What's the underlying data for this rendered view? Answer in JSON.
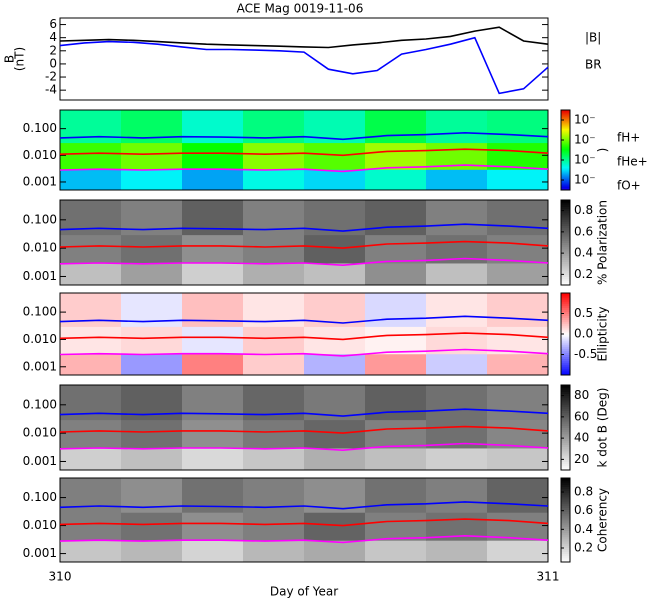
{
  "chart_data": [
    {
      "type": "line",
      "title": "ACE Mag 0019-11-06",
      "ylabel": [
        "B",
        "(nT)"
      ],
      "xlim": [
        310,
        311
      ],
      "ylim": [
        -5.5,
        7
      ],
      "yticks": [
        -4,
        -2,
        0,
        2,
        4,
        6
      ],
      "x": [
        310,
        310.05,
        310.1,
        310.15,
        310.2,
        310.25,
        310.3,
        310.35,
        310.4,
        310.45,
        310.5,
        310.55,
        310.6,
        310.65,
        310.7,
        310.75,
        310.8,
        310.85,
        310.9,
        310.95,
        311
      ],
      "series": [
        {
          "name": "|B|",
          "color": "#000000",
          "values": [
            3.5,
            3.6,
            3.7,
            3.6,
            3.4,
            3.2,
            3.0,
            2.9,
            2.8,
            2.7,
            2.6,
            2.5,
            2.9,
            3.2,
            3.6,
            3.8,
            4.2,
            5.0,
            5.6,
            3.5,
            3.0
          ]
        },
        {
          "name": "BR",
          "color": "#0000ff",
          "values": [
            2.8,
            3.2,
            3.4,
            3.3,
            3.0,
            2.6,
            2.2,
            2.2,
            2.1,
            2.0,
            1.8,
            -0.8,
            -1.5,
            -1.0,
            1.5,
            2.2,
            3.0,
            4.0,
            -4.5,
            -3.8,
            -0.5
          ]
        }
      ]
    },
    {
      "type": "spectrogram",
      "log": true,
      "xlim": [
        310,
        311
      ],
      "ylim": [
        0.0005,
        0.5
      ],
      "yticks": [
        0.001,
        {
          "value": 0.01,
          "label": "0.010"
        },
        {
          "value": 0.1,
          "label": "0.100"
        }
      ],
      "colormap": "rainbow",
      "zlim": [
        -7.5,
        -3.5
      ],
      "zticks": [
        {
          "value": -7,
          "label": "10⁻"
        },
        {
          "value": -6,
          "label": "10⁻"
        },
        {
          "value": -5,
          "label": "10⁻"
        },
        {
          "value": -4,
          "label": "10⁻"
        }
      ],
      "colorbar_label": ")",
      "z_y_edges": [
        0.0005,
        0.003,
        0.03,
        0.5
      ],
      "z": [
        [
          -6.6,
          -6.4,
          -6.7,
          -6.3,
          -6.5,
          -6.2,
          -6.6,
          -6.4
        ],
        [
          -5.2,
          -5.0,
          -5.4,
          -4.9,
          -5.1,
          -4.8,
          -5.0,
          -5.3
        ],
        [
          -6.0,
          -5.8,
          -6.2,
          -5.9,
          -6.1,
          -5.7,
          -6.0,
          -5.9
        ]
      ],
      "legend": true,
      "x": [
        310,
        310.08,
        310.17,
        310.25,
        310.33,
        310.42,
        310.5,
        310.58,
        310.67,
        310.75,
        310.83,
        310.92,
        311
      ],
      "series": [
        {
          "name": "fH+",
          "color": "#0000ff",
          "values": [
            0.045,
            0.05,
            0.045,
            0.05,
            0.048,
            0.045,
            0.05,
            0.04,
            0.055,
            0.06,
            0.07,
            0.06,
            0.05
          ]
        },
        {
          "name": "fHe+",
          "color": "#ff0000",
          "values": [
            0.011,
            0.012,
            0.011,
            0.012,
            0.012,
            0.011,
            0.012,
            0.01,
            0.014,
            0.015,
            0.017,
            0.015,
            0.012
          ]
        },
        {
          "name": "fO+",
          "color": "#ff00ff",
          "values": [
            0.0028,
            0.003,
            0.0028,
            0.003,
            0.003,
            0.0028,
            0.003,
            0.0025,
            0.0034,
            0.0037,
            0.0043,
            0.0037,
            0.003
          ]
        }
      ]
    },
    {
      "type": "spectrogram",
      "log": true,
      "xlim": [
        310,
        311
      ],
      "ylim": [
        0.0005,
        0.5
      ],
      "yticks": [
        0.001,
        {
          "value": 0.01,
          "label": "0.010"
        },
        {
          "value": 0.1,
          "label": "0.100"
        }
      ],
      "colormap": "gray_r",
      "zlim": [
        0.1,
        0.9
      ],
      "zticks": [
        0.2,
        0.4,
        0.6,
        0.8
      ],
      "colorbar_label": "% Polarization",
      "z_y_edges": [
        0.0005,
        0.003,
        0.03,
        0.5
      ],
      "z": [
        [
          0.3,
          0.4,
          0.25,
          0.35,
          0.3,
          0.45,
          0.3,
          0.4
        ],
        [
          0.5,
          0.55,
          0.45,
          0.5,
          0.6,
          0.5,
          0.55,
          0.5
        ],
        [
          0.55,
          0.5,
          0.6,
          0.5,
          0.55,
          0.6,
          0.5,
          0.55
        ]
      ],
      "x": [
        310,
        310.08,
        310.17,
        310.25,
        310.33,
        310.42,
        310.5,
        310.58,
        310.67,
        310.75,
        310.83,
        310.92,
        311
      ],
      "series": [
        {
          "color": "#0000ff",
          "values": [
            0.045,
            0.05,
            0.045,
            0.05,
            0.048,
            0.045,
            0.05,
            0.04,
            0.055,
            0.06,
            0.07,
            0.06,
            0.05
          ]
        },
        {
          "color": "#ff0000",
          "values": [
            0.011,
            0.012,
            0.011,
            0.012,
            0.012,
            0.011,
            0.012,
            0.01,
            0.014,
            0.015,
            0.017,
            0.015,
            0.012
          ]
        },
        {
          "color": "#ff00ff",
          "values": [
            0.0028,
            0.003,
            0.0028,
            0.003,
            0.003,
            0.0028,
            0.003,
            0.0025,
            0.0034,
            0.0037,
            0.0043,
            0.0037,
            0.003
          ]
        }
      ]
    },
    {
      "type": "spectrogram",
      "log": true,
      "xlim": [
        310,
        311
      ],
      "ylim": [
        0.0005,
        0.5
      ],
      "yticks": [
        0.001,
        {
          "value": 0.01,
          "label": "0.010"
        },
        {
          "value": 0.1,
          "label": "0.100"
        }
      ],
      "colormap": "bwr",
      "zlim": [
        -1,
        1
      ],
      "zticks": [
        -0.5,
        {
          "value": 0,
          "label": "0.0"
        },
        0.5
      ],
      "colorbar_label": "Ellipticity",
      "z_y_edges": [
        0.0005,
        0.003,
        0.03,
        0.5
      ],
      "z": [
        [
          0.3,
          -0.4,
          0.5,
          0.2,
          -0.3,
          0.4,
          -0.2,
          0.3
        ],
        [
          0.1,
          0.15,
          -0.1,
          0.2,
          0.1,
          0.05,
          0.15,
          0.1
        ],
        [
          0.2,
          -0.1,
          0.25,
          0.1,
          0.2,
          -0.15,
          0.1,
          0.2
        ]
      ],
      "x": [
        310,
        310.08,
        310.17,
        310.25,
        310.33,
        310.42,
        310.5,
        310.58,
        310.67,
        310.75,
        310.83,
        310.92,
        311
      ],
      "series": [
        {
          "color": "#0000ff",
          "values": [
            0.045,
            0.05,
            0.045,
            0.05,
            0.048,
            0.045,
            0.05,
            0.04,
            0.055,
            0.06,
            0.07,
            0.06,
            0.05
          ]
        },
        {
          "color": "#ff0000",
          "values": [
            0.011,
            0.012,
            0.011,
            0.012,
            0.012,
            0.011,
            0.012,
            0.01,
            0.014,
            0.015,
            0.017,
            0.015,
            0.012
          ]
        },
        {
          "color": "#ff00ff",
          "values": [
            0.0028,
            0.003,
            0.0028,
            0.003,
            0.003,
            0.0028,
            0.003,
            0.0025,
            0.0034,
            0.0037,
            0.0043,
            0.0037,
            0.003
          ]
        }
      ]
    },
    {
      "type": "spectrogram",
      "log": true,
      "xlim": [
        310,
        311
      ],
      "ylim": [
        0.0005,
        0.5
      ],
      "yticks": [
        0.001,
        {
          "value": 0.01,
          "label": "0.010"
        },
        {
          "value": 0.1,
          "label": "0.100"
        }
      ],
      "colormap": "gray_r",
      "zlim": [
        10,
        90
      ],
      "zticks": [
        20,
        40,
        60,
        80
      ],
      "colorbar_label": "k dot B (Deg)",
      "z_y_edges": [
        0.0005,
        0.003,
        0.03,
        0.5
      ],
      "z": [
        [
          25,
          30,
          22,
          28,
          35,
          30,
          25,
          28
        ],
        [
          50,
          55,
          45,
          52,
          58,
          50,
          55,
          48
        ],
        [
          55,
          60,
          50,
          58,
          52,
          60,
          55,
          50
        ]
      ],
      "x": [
        310,
        310.08,
        310.17,
        310.25,
        310.33,
        310.42,
        310.5,
        310.58,
        310.67,
        310.75,
        310.83,
        310.92,
        311
      ],
      "series": [
        {
          "color": "#0000ff",
          "values": [
            0.045,
            0.05,
            0.045,
            0.05,
            0.048,
            0.045,
            0.05,
            0.04,
            0.055,
            0.06,
            0.07,
            0.06,
            0.05
          ]
        },
        {
          "color": "#ff0000",
          "values": [
            0.011,
            0.012,
            0.011,
            0.012,
            0.012,
            0.011,
            0.012,
            0.01,
            0.014,
            0.015,
            0.017,
            0.015,
            0.012
          ]
        },
        {
          "color": "#ff00ff",
          "values": [
            0.0028,
            0.003,
            0.0028,
            0.003,
            0.003,
            0.0028,
            0.003,
            0.0025,
            0.0034,
            0.0037,
            0.0043,
            0.0037,
            0.003
          ]
        }
      ]
    },
    {
      "type": "spectrogram",
      "log": true,
      "xlim": [
        310,
        311
      ],
      "ylim": [
        0.0005,
        0.5
      ],
      "yticks": [
        0.001,
        {
          "value": 0.01,
          "label": "0.010"
        },
        {
          "value": 0.1,
          "label": "0.100"
        }
      ],
      "colormap": "gray_r",
      "zlim": [
        0.05,
        0.95
      ],
      "zticks": [
        0.2,
        0.4,
        0.6,
        0.8
      ],
      "colorbar_label": "Coherency",
      "z_y_edges": [
        0.0005,
        0.003,
        0.03,
        0.5
      ],
      "z": [
        [
          0.25,
          0.3,
          0.2,
          0.3,
          0.35,
          0.25,
          0.3,
          0.2
        ],
        [
          0.5,
          0.55,
          0.45,
          0.5,
          0.6,
          0.5,
          0.55,
          0.5
        ],
        [
          0.5,
          0.45,
          0.55,
          0.5,
          0.45,
          0.55,
          0.5,
          0.6
        ]
      ],
      "xticks": [
        310,
        311
      ],
      "xlabel": "Day of Year",
      "x": [
        310,
        310.08,
        310.17,
        310.25,
        310.33,
        310.42,
        310.5,
        310.58,
        310.67,
        310.75,
        310.83,
        310.92,
        311
      ],
      "series": [
        {
          "color": "#0000ff",
          "values": [
            0.045,
            0.05,
            0.045,
            0.05,
            0.048,
            0.045,
            0.05,
            0.04,
            0.055,
            0.06,
            0.07,
            0.06,
            0.05
          ]
        },
        {
          "color": "#ff0000",
          "values": [
            0.011,
            0.012,
            0.011,
            0.012,
            0.012,
            0.011,
            0.012,
            0.01,
            0.014,
            0.015,
            0.017,
            0.015,
            0.012
          ]
        },
        {
          "color": "#ff00ff",
          "values": [
            0.0028,
            0.003,
            0.0028,
            0.003,
            0.003,
            0.0028,
            0.003,
            0.0025,
            0.0034,
            0.0037,
            0.0043,
            0.0037,
            0.003
          ]
        }
      ]
    }
  ]
}
